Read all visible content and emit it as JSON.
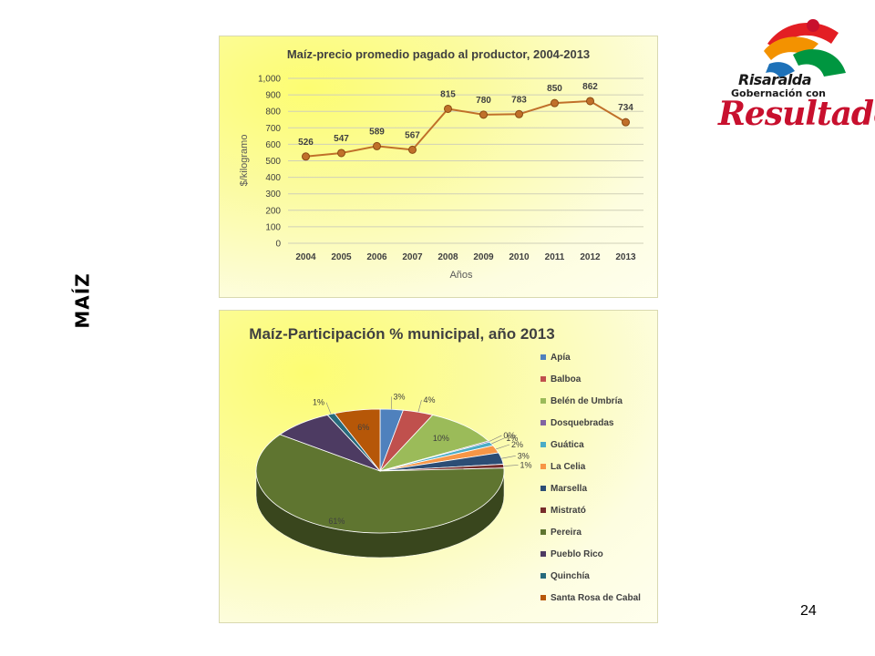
{
  "side_title": "MAÍZ",
  "page_number": "24",
  "logo": {
    "line1": "Risaralda",
    "line2": "Gobernación con",
    "line3": "Resultados",
    "colors": [
      "#e31e24",
      "#f39200",
      "#009640",
      "#1d71b8",
      "#c8102e"
    ]
  },
  "chart_data": [
    {
      "type": "line",
      "title": "Maíz-precio promedio pagado al productor, 2004-2013",
      "xlabel": "Años",
      "ylabel": "$/kilogramo",
      "x": [
        "2004",
        "2005",
        "2006",
        "2007",
        "2008",
        "2009",
        "2010",
        "2011",
        "2012",
        "2013"
      ],
      "series": [
        {
          "values": [
            526,
            547,
            589,
            567,
            815,
            780,
            783,
            850,
            862,
            734
          ],
          "color": "#c0702a"
        }
      ],
      "y_ticks": [
        "0",
        "100",
        "200",
        "300",
        "400",
        "500",
        "600",
        "700",
        "800",
        "900",
        "1,000"
      ],
      "ylim": [
        0,
        1000
      ],
      "grid": true,
      "data_labels": [
        "526",
        "547",
        "589",
        "567",
        "815",
        "780",
        "783",
        "850",
        "862",
        "734"
      ]
    },
    {
      "type": "pie",
      "title": "Maíz-Participación  % municipal, año 2013",
      "legend_position": "right",
      "slices": [
        {
          "name": "Apía",
          "value": 3,
          "label": "3%",
          "color": "#4f81bd"
        },
        {
          "name": "Balboa",
          "value": 4,
          "label": "4%",
          "color": "#c0504d"
        },
        {
          "name": "Belén de Umbría",
          "value": 10,
          "label": "10%",
          "color": "#9bbb59"
        },
        {
          "name": "Dosquebradas",
          "value": 0.3,
          "label": "0%",
          "color": "#8064a2"
        },
        {
          "name": "Guática",
          "value": 1,
          "label": "1%",
          "color": "#4bacc6"
        },
        {
          "name": "La Celia",
          "value": 2,
          "label": "2%",
          "color": "#f79646"
        },
        {
          "name": "Marsella",
          "value": 3,
          "label": "3%",
          "color": "#2c4d75"
        },
        {
          "name": "Mistrató",
          "value": 1,
          "label": "1%",
          "color": "#772c2a"
        },
        {
          "name": "Pereira",
          "value": 61,
          "label": "61%",
          "color": "#5f7530"
        },
        {
          "name": "Pueblo Rico",
          "value": 8,
          "label": "",
          "color": "#4d3b62"
        },
        {
          "name": "Quinchía",
          "value": 1,
          "label": "1%",
          "color": "#276a7c"
        },
        {
          "name": "Santa Rosa de Cabal",
          "value": 6,
          "label": "6%",
          "color": "#b65708"
        }
      ]
    }
  ]
}
